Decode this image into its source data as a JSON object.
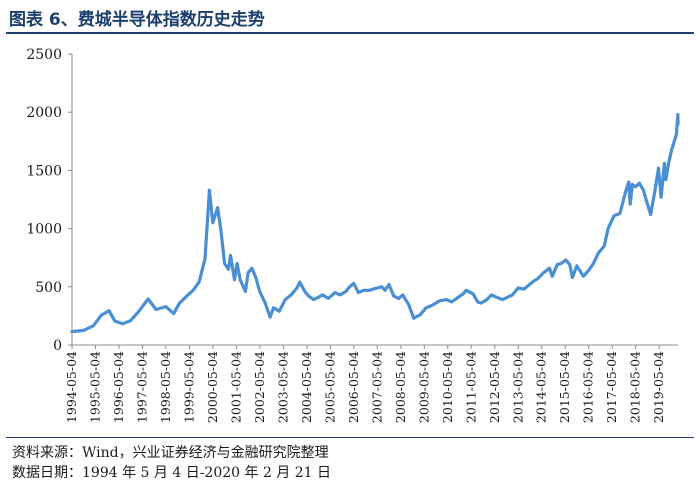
{
  "figure": {
    "title": "图表 6、费城半导体指数历史走势",
    "source": "资料来源：Wind，兴业证券经济与金融研究院整理",
    "data_date": "数据日期：1994 年 5 月 4 日-2020 年 2 月 21 日"
  },
  "colors": {
    "line": "#4a8fd1",
    "text": "#1a1a1a",
    "title": "#1d3f6e",
    "axis": "#8c8c8c"
  },
  "chart_data": {
    "type": "line",
    "title": "",
    "xlabel": "",
    "ylabel": "",
    "ylim": [
      0,
      2500
    ],
    "yticks": [
      0,
      500,
      1000,
      1500,
      2000,
      2500
    ],
    "xlim": [
      "1994-05-04",
      "2020-02-21"
    ],
    "xticks": [
      "1994-05-04",
      "1995-05-04",
      "1996-05-04",
      "1997-05-04",
      "1998-05-04",
      "1999-05-04",
      "2000-05-04",
      "2001-05-04",
      "2002-05-04",
      "2003-05-04",
      "2004-05-04",
      "2005-05-04",
      "2006-05-04",
      "2007-05-04",
      "2008-05-04",
      "2009-05-04",
      "2010-05-04",
      "2011-05-04",
      "2012-05-04",
      "2013-05-04",
      "2014-05-04",
      "2015-05-04",
      "2016-05-04",
      "2017-05-04",
      "2018-05-04",
      "2019-05-04"
    ],
    "grid": false,
    "legend": "none",
    "series": [
      {
        "name": "",
        "x": [
          "1994-05-04",
          "1994-11-01",
          "1995-04-01",
          "1995-08-01",
          "1995-12-01",
          "1996-03-01",
          "1996-07-01",
          "1996-11-01",
          "1997-03-01",
          "1997-08-01",
          "1997-12-01",
          "1998-05-01",
          "1998-09-01",
          "1998-12-01",
          "1999-04-01",
          "1999-07-01",
          "1999-10-01",
          "2000-01-01",
          "2000-03-10",
          "2000-05-01",
          "2000-07-15",
          "2000-09-01",
          "2000-11-01",
          "2000-12-31",
          "2001-02-01",
          "2001-04-04",
          "2001-05-15",
          "2001-07-01",
          "2001-09-21",
          "2001-11-01",
          "2001-12-31",
          "2002-03-01",
          "2002-05-01",
          "2002-07-25",
          "2002-10-09",
          "2002-12-01",
          "2003-03-01",
          "2003-06-01",
          "2003-09-01",
          "2003-12-01",
          "2004-01-15",
          "2004-04-01",
          "2004-06-01",
          "2004-08-15",
          "2004-11-01",
          "2005-01-01",
          "2005-04-01",
          "2005-07-15",
          "2005-10-01",
          "2005-12-31",
          "2006-03-01",
          "2006-05-01",
          "2006-07-15",
          "2006-10-01",
          "2006-12-31",
          "2007-03-01",
          "2007-07-15",
          "2007-09-01",
          "2007-10-31",
          "2008-01-15",
          "2008-04-01",
          "2008-06-01",
          "2008-09-01",
          "2008-11-20",
          "2009-03-01",
          "2009-06-01",
          "2009-09-01",
          "2009-12-31",
          "2010-04-15",
          "2010-07-01",
          "2010-12-31",
          "2011-02-15",
          "2011-06-01",
          "2011-08-10",
          "2011-10-04",
          "2011-12-31",
          "2012-03-15",
          "2012-06-01",
          "2012-09-01",
          "2012-11-15",
          "2013-02-01",
          "2013-05-01",
          "2013-08-01",
          "2013-12-31",
          "2014-03-01",
          "2014-06-01",
          "2014-09-01",
          "2014-10-15",
          "2014-12-31",
          "2015-03-01",
          "2015-05-15",
          "2015-07-15",
          "2015-08-24",
          "2015-11-01",
          "2016-02-11",
          "2016-05-01",
          "2016-07-15",
          "2016-10-01",
          "2016-12-31",
          "2017-03-01",
          "2017-06-01",
          "2017-09-01",
          "2017-11-30",
          "2018-01-15",
          "2018-02-08",
          "2018-03-12",
          "2018-05-01",
          "2018-07-01",
          "2018-09-01",
          "2018-10-29",
          "2018-12-24",
          "2019-03-01",
          "2019-04-24",
          "2019-06-03",
          "2019-07-24",
          "2019-08-15",
          "2019-10-01",
          "2019-11-15",
          "2019-12-31",
          "2020-01-27",
          "2020-02-19",
          "2020-02-21"
        ],
        "y": [
          115,
          125,
          165,
          255,
          295,
          205,
          182,
          210,
          285,
          395,
          305,
          330,
          270,
          360,
          425,
          470,
          540,
          740,
          1330,
          1050,
          1180,
          1000,
          700,
          650,
          770,
          560,
          700,
          560,
          460,
          620,
          660,
          580,
          460,
          360,
          240,
          320,
          290,
          390,
          430,
          490,
          540,
          460,
          420,
          390,
          410,
          430,
          400,
          450,
          430,
          460,
          500,
          530,
          450,
          470,
          470,
          480,
          500,
          470,
          520,
          420,
          400,
          430,
          350,
          230,
          260,
          320,
          340,
          380,
          390,
          370,
          440,
          470,
          440,
          370,
          360,
          390,
          430,
          410,
          390,
          410,
          430,
          490,
          480,
          550,
          570,
          620,
          660,
          590,
          690,
          700,
          730,
          690,
          580,
          680,
          590,
          640,
          700,
          790,
          850,
          1000,
          1110,
          1130,
          1320,
          1400,
          1210,
          1380,
          1360,
          1390,
          1330,
          1220,
          1120,
          1330,
          1520,
          1270,
          1560,
          1420,
          1570,
          1680,
          1760,
          1810,
          1980,
          1900
        ]
      }
    ]
  }
}
